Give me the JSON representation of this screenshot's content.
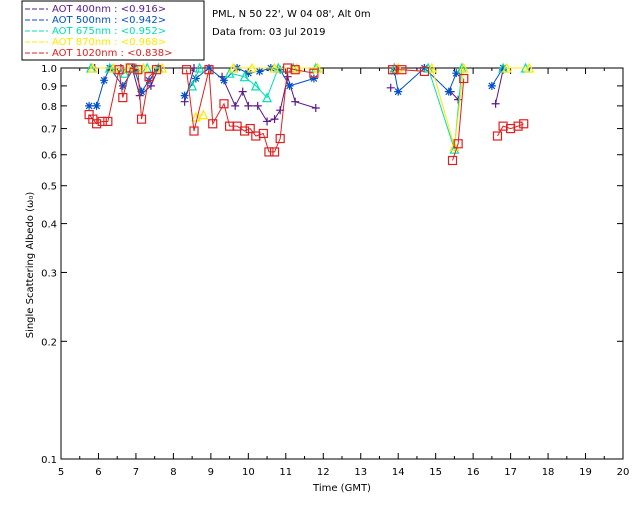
{
  "chart_data": {
    "type": "line",
    "title_line1": "PML, N 50 22', W 04 08', Alt 0m",
    "title_line2": "Data from: 03 Jul 2019",
    "xlabel": "Time (GMT)",
    "ylabel": "Single Scattering Albedo (ω₀)",
    "xlim": [
      5,
      20
    ],
    "ylim": [
      0.1,
      1.0
    ],
    "yscale": "log",
    "x_ticks": [
      "5",
      "6",
      "7",
      "8",
      "9",
      "10",
      "11",
      "12",
      "13",
      "14",
      "15",
      "16",
      "17",
      "18",
      "19",
      "20"
    ],
    "y_ticks": [
      {
        "v": 1.0,
        "label": "1.0"
      },
      {
        "v": 0.9,
        "label": "0.9"
      },
      {
        "v": 0.8,
        "label": "0.8"
      },
      {
        "v": 0.7,
        "label": "0.7"
      },
      {
        "v": 0.6,
        "label": "0.6"
      },
      {
        "v": 0.5,
        "label": "0.5"
      },
      {
        "v": 0.4,
        "label": "0.4"
      },
      {
        "v": 0.3,
        "label": "0.3"
      },
      {
        "v": 0.2,
        "label": "0.2"
      },
      {
        "v": 0.1,
        "label": "0.1"
      }
    ],
    "legend_placement": "top-left, outside plot",
    "series": [
      {
        "name": "AOT 400nm : <0.916>",
        "color": "#5a1a8a",
        "marker": "plus",
        "x": [
          5.9,
          6.3,
          6.6,
          6.9,
          7.1,
          7.4,
          7.6,
          8.3,
          8.55,
          9.3,
          9.65,
          9.85,
          10.0,
          10.25,
          10.5,
          10.7,
          10.85,
          11.05,
          11.25,
          11.8,
          13.8,
          14.7,
          15.4,
          15.6,
          16.6,
          16.8
        ],
        "y": [
          1.0,
          1.0,
          1.0,
          1.0,
          0.85,
          0.9,
          1.0,
          0.82,
          1.0,
          0.95,
          0.8,
          0.87,
          0.8,
          0.8,
          0.73,
          0.74,
          0.78,
          0.95,
          0.82,
          0.79,
          0.89,
          1.0,
          0.87,
          0.83,
          0.81,
          0.99
        ]
      },
      {
        "name": "AOT 500nm : <0.942>",
        "color": "#0050c8",
        "marker": "star",
        "x": [
          5.75,
          5.95,
          6.15,
          6.3,
          6.65,
          6.95,
          7.15,
          7.35,
          7.6,
          8.3,
          8.6,
          8.95,
          9.35,
          9.7,
          10.0,
          10.3,
          10.6,
          10.85,
          11.1,
          11.75,
          13.9,
          14.0,
          14.7,
          15.35,
          15.55,
          16.5,
          16.8
        ],
        "y": [
          0.8,
          0.8,
          0.93,
          1.0,
          0.9,
          1.0,
          0.87,
          0.93,
          1.0,
          0.85,
          0.94,
          1.0,
          0.93,
          1.0,
          0.97,
          0.98,
          1.0,
          0.99,
          0.9,
          0.94,
          0.98,
          0.87,
          1.0,
          0.87,
          0.97,
          0.9,
          1.0
        ]
      },
      {
        "name": "AOT 675nm : <0.952>",
        "color": "#00e0b0",
        "marker": "triangle",
        "x": [
          5.8,
          6.3,
          6.7,
          7.0,
          7.3,
          7.6,
          8.5,
          8.7,
          9.5,
          9.9,
          10.2,
          10.5,
          10.8,
          11.2,
          11.8,
          13.9,
          14.8,
          15.5,
          15.7,
          16.8,
          17.4
        ],
        "y": [
          1.0,
          1.0,
          0.97,
          1.0,
          1.0,
          1.0,
          0.9,
          1.0,
          0.97,
          0.95,
          0.9,
          0.84,
          1.0,
          1.0,
          1.0,
          1.0,
          1.0,
          0.62,
          1.0,
          1.0,
          1.0
        ]
      },
      {
        "name": "AOT 870nm : <0.968>",
        "color": "#ffe800",
        "marker": "triangle",
        "x": [
          5.85,
          6.4,
          6.8,
          7.2,
          7.7,
          8.6,
          8.8,
          9.6,
          10.1,
          10.7,
          11.3,
          11.85,
          14.0,
          14.9,
          15.5,
          15.75,
          16.9,
          17.5
        ],
        "y": [
          1.0,
          1.0,
          1.0,
          1.0,
          1.0,
          0.75,
          0.76,
          1.0,
          1.0,
          1.0,
          1.0,
          1.0,
          1.0,
          1.0,
          0.63,
          1.0,
          1.0,
          1.0
        ]
      },
      {
        "name": "AOT 1020nm : <0.838>",
        "color": "#e02020",
        "marker": "square",
        "x": [
          5.75,
          5.85,
          5.95,
          6.1,
          6.25,
          6.55,
          6.65,
          6.85,
          7.05,
          7.15,
          7.35,
          7.55,
          8.35,
          8.55,
          8.95,
          9.05,
          9.35,
          9.5,
          9.7,
          9.9,
          10.05,
          10.2,
          10.4,
          10.55,
          10.7,
          10.85,
          11.05,
          11.25,
          11.75,
          13.85,
          14.1,
          14.7,
          15.45,
          15.6,
          15.75,
          16.65,
          16.8,
          17.0,
          17.2,
          17.35
        ],
        "y": [
          0.76,
          0.74,
          0.72,
          0.73,
          0.73,
          0.99,
          0.84,
          1.0,
          0.99,
          0.74,
          0.95,
          0.99,
          0.99,
          0.69,
          0.99,
          0.72,
          0.81,
          0.71,
          0.71,
          0.69,
          0.7,
          0.67,
          0.68,
          0.61,
          0.61,
          0.66,
          1.0,
          0.99,
          0.97,
          0.99,
          0.99,
          0.98,
          0.58,
          0.64,
          0.94,
          0.67,
          0.71,
          0.7,
          0.71,
          0.72
        ]
      }
    ]
  }
}
